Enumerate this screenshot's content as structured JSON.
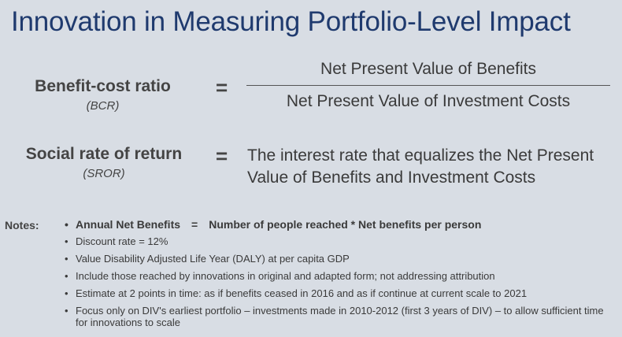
{
  "title": "Innovation in Measuring Portfolio-Level Impact",
  "bcr": {
    "term": "Benefit-cost ratio",
    "abbr": "(BCR)",
    "equals": "=",
    "numerator": "Net Present Value of Benefits",
    "denominator": "Net Present Value of Investment Costs"
  },
  "sror": {
    "term": "Social rate of return",
    "abbr": "(SROR)",
    "equals": "=",
    "line1": "The interest rate that equalizes the Net Present",
    "line2": "Value of Benefits and Investment Costs"
  },
  "notes": {
    "label": "Notes:",
    "bullet": "•",
    "first_left": "Annual Net Benefits",
    "first_eq": "=",
    "first_right": "Number of people reached * Net benefits per person",
    "items": [
      "Discount rate = 12%",
      "Value Disability Adjusted Life Year (DALY) at per capita GDP",
      "Include those reached by innovations in original and adapted form; not addressing attribution",
      "Estimate at 2 points in time: as if benefits ceased in 2016 and as if continue at current scale to 2021",
      "Focus only on DIV's earliest portfolio – investments made in 2010-2012 (first 3 years of DIV) – to allow sufficient time for innovations to scale"
    ]
  }
}
